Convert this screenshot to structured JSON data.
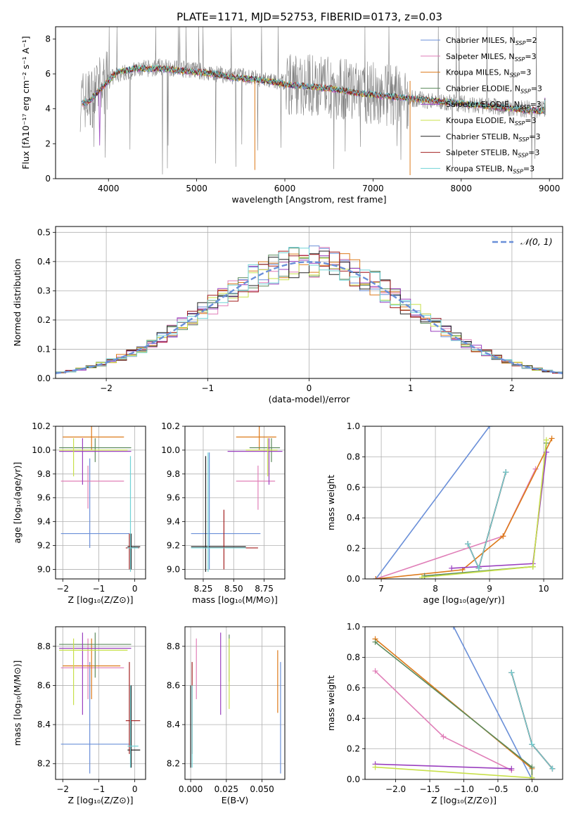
{
  "title": "PLATE=1171, MJD=52753, FIBERID=0173, z=0.03",
  "colors": {
    "blue": "#6a8fd8",
    "pink": "#e07fb8",
    "orange": "#dd7a1a",
    "green": "#5c8a5c",
    "purple": "#9a3fbf",
    "yellow": "#c8e04a",
    "black": "#222222",
    "red": "#a31f1f",
    "cyan": "#6fd3d6",
    "gray": "#808080",
    "grid": "#b0b0b0"
  },
  "chart_data": [
    {
      "id": "spectrum",
      "type": "line",
      "xlabel": "wavelength [Angstrom, rest frame]",
      "ylabel": "Flux [fλ10⁻¹⁷ erg cm⁻² s⁻¹ A⁻¹]",
      "xlim": [
        3400,
        9150
      ],
      "ylim": [
        0,
        8.7
      ],
      "xticks": [
        4000,
        5000,
        6000,
        7000,
        8000,
        9000
      ],
      "yticks": [
        0,
        2,
        4,
        6,
        8
      ],
      "grid": false,
      "legend": "top-right",
      "legend_entries": [
        {
          "label": "Chabrier MILES, N",
          "sub": "SSP",
          "suffix": "=2",
          "color": "blue"
        },
        {
          "label": "Salpeter MILES, N",
          "sub": "SSP",
          "suffix": "=3",
          "color": "pink"
        },
        {
          "label": "Kroupa MILES, N",
          "sub": "SSP",
          "suffix": "=3",
          "color": "orange"
        },
        {
          "label": "Chabrier ELODIE, N",
          "sub": "SSP",
          "suffix": "=3",
          "color": "green"
        },
        {
          "label": "Salpeter ELODIE, N",
          "sub": "SSP",
          "suffix": "=3",
          "color": "purple"
        },
        {
          "label": "Kroupa ELODIE, N",
          "sub": "SSP",
          "suffix": "=3",
          "color": "yellow"
        },
        {
          "label": "Chabrier STELIB, N",
          "sub": "SSP",
          "suffix": "=3",
          "color": "black"
        },
        {
          "label": "Salpeter STELIB, N",
          "sub": "SSP",
          "suffix": "=3",
          "color": "red"
        },
        {
          "label": "Kroupa STELIB, N",
          "sub": "SSP",
          "suffix": "=3",
          "color": "cyan"
        }
      ],
      "data_x": [
        3700,
        3800,
        3900,
        4000,
        4100,
        4200,
        4300,
        4400,
        4500,
        4600,
        4800,
        5000,
        5200,
        5400,
        5600,
        5800,
        6000,
        6200,
        6400,
        6600,
        6800,
        7000,
        7200,
        7400,
        7600,
        7800,
        8000,
        8200,
        8400,
        8600,
        8800,
        9000
      ],
      "data_y": [
        4.5,
        4.6,
        5.2,
        5.6,
        6.0,
        6.1,
        6.2,
        6.3,
        6.3,
        6.4,
        6.3,
        6.2,
        6.0,
        5.9,
        5.8,
        5.6,
        5.5,
        5.4,
        5.3,
        5.1,
        5.0,
        4.9,
        4.8,
        4.6,
        4.5,
        4.4,
        4.3,
        4.2,
        4.1,
        4.0,
        4.0,
        3.9
      ],
      "model_x": [
        3700,
        3800,
        3900,
        4000,
        4100,
        4200,
        4300,
        4400,
        4500,
        4600,
        4800,
        5000,
        5200,
        5400,
        5600,
        5800,
        6000,
        6200,
        6400,
        6600,
        6800,
        7000,
        7200,
        7400,
        7600,
        7800,
        8000,
        8200,
        8400,
        8600,
        8800,
        8950
      ],
      "model_y": [
        4.3,
        4.5,
        5.1,
        5.6,
        6.1,
        6.2,
        6.3,
        6.3,
        6.3,
        6.3,
        6.2,
        6.1,
        6.0,
        5.8,
        5.7,
        5.6,
        5.4,
        5.3,
        5.2,
        5.1,
        4.9,
        4.8,
        4.7,
        4.6,
        4.5,
        4.4,
        4.3,
        4.2,
        4.1,
        4.0,
        3.9,
        3.9
      ]
    },
    {
      "id": "residuals",
      "type": "line",
      "xlabel": "(data-model)/error",
      "ylabel": "Normed distribution",
      "xlim": [
        -2.5,
        2.5
      ],
      "ylim": [
        0,
        0.52
      ],
      "xticks": [
        -2,
        -1,
        0,
        1,
        2
      ],
      "yticks": [
        0.0,
        0.1,
        0.2,
        0.3,
        0.4,
        0.5
      ],
      "grid": true,
      "legend": "top-right",
      "legend_label": "𝒩(0, 1)",
      "series_colors": [
        "blue",
        "pink",
        "orange",
        "green",
        "purple",
        "yellow",
        "black",
        "red",
        "cyan"
      ]
    },
    {
      "id": "age_vs_Z",
      "type": "scatter",
      "xlabel": "Z [log₁₀(Z/Z⊙)]",
      "ylabel": "age  [log₁₀(age/yr)]",
      "xlim": [
        -2.2,
        0.3
      ],
      "ylim": [
        8.92,
        10.2
      ],
      "xticks": [
        -2,
        -1,
        0
      ],
      "yticks": [
        9.0,
        9.2,
        9.4,
        9.6,
        9.8,
        10.0,
        10.2
      ],
      "grid": true,
      "points": [
        {
          "c": "blue",
          "x": -1.25,
          "xe": [
            -2.05,
            -0.15
          ],
          "y": 9.3,
          "ye": [
            9.18,
            9.93
          ]
        },
        {
          "c": "pink",
          "x": -1.3,
          "xe": [
            -2.05,
            -0.3
          ],
          "y": 9.74,
          "ye": [
            9.51,
            9.87
          ]
        },
        {
          "c": "orange",
          "x": -1.2,
          "xe": [
            -2.0,
            -0.3
          ],
          "y": 10.11,
          "ye": [
            10.0,
            10.2
          ]
        },
        {
          "c": "green",
          "x": -1.1,
          "xe": [
            -2.1,
            -0.1
          ],
          "y": 10.02,
          "ye": [
            9.9,
            10.1
          ]
        },
        {
          "c": "purple",
          "x": -1.45,
          "xe": [
            -2.1,
            -0.1
          ],
          "y": 9.99,
          "ye": [
            9.71,
            10.1
          ]
        },
        {
          "c": "yellow",
          "x": -1.7,
          "xe": [
            -2.1,
            -0.2
          ],
          "y": 10.0,
          "ye": [
            9.78,
            10.1
          ]
        },
        {
          "c": "black",
          "x": -0.1,
          "xe": [
            -0.2,
            0.15
          ],
          "y": 9.19,
          "ye": [
            9.0,
            9.3
          ]
        },
        {
          "c": "red",
          "x": -0.15,
          "xe": [
            -0.25,
            0.12
          ],
          "y": 9.18,
          "ye": [
            9.0,
            9.3
          ]
        },
        {
          "c": "cyan",
          "x": -0.12,
          "xe": [
            -0.2,
            0.1
          ],
          "y": 9.18,
          "ye": [
            8.98,
            9.95
          ]
        }
      ]
    },
    {
      "id": "age_vs_mass",
      "type": "scatter",
      "xlabel": "mass [log₁₀(M/M⊙)]",
      "ylabel": "",
      "xlim": [
        8.1,
        8.92
      ],
      "ylim": [
        8.92,
        10.2
      ],
      "xticks": [
        8.25,
        8.5,
        8.75
      ],
      "yticks": [
        9.0,
        9.2,
        9.4,
        9.6,
        9.8,
        10.0,
        10.2
      ],
      "grid": true,
      "points": [
        {
          "c": "blue",
          "x": 8.3,
          "xe": [
            8.15,
            8.72
          ],
          "y": 9.3,
          "ye": [
            9.0,
            9.98
          ]
        },
        {
          "c": "pink",
          "x": 8.7,
          "xe": [
            8.52,
            8.84
          ],
          "y": 9.74,
          "ye": [
            9.5,
            9.87
          ]
        },
        {
          "c": "orange",
          "x": 8.71,
          "xe": [
            8.52,
            8.85
          ],
          "y": 10.11,
          "ye": [
            10.0,
            10.2
          ]
        },
        {
          "c": "green",
          "x": 8.81,
          "xe": [
            8.63,
            8.88
          ],
          "y": 10.02,
          "ye": [
            9.9,
            10.1
          ]
        },
        {
          "c": "purple",
          "x": 8.79,
          "xe": [
            8.45,
            8.9
          ],
          "y": 9.99,
          "ye": [
            9.71,
            10.1
          ]
        },
        {
          "c": "yellow",
          "x": 8.78,
          "xe": [
            8.6,
            8.86
          ],
          "y": 10.0,
          "ye": [
            9.78,
            10.1
          ]
        },
        {
          "c": "black",
          "x": 8.27,
          "xe": [
            8.15,
            8.6
          ],
          "y": 9.19,
          "ye": [
            8.98,
            9.95
          ]
        },
        {
          "c": "red",
          "x": 8.42,
          "xe": [
            8.25,
            8.7
          ],
          "y": 9.18,
          "ye": [
            9.0,
            9.5
          ]
        },
        {
          "c": "cyan",
          "x": 8.29,
          "xe": [
            8.15,
            8.6
          ],
          "y": 9.18,
          "ye": [
            8.98,
            9.98
          ]
        }
      ]
    },
    {
      "id": "massweight_vs_age",
      "type": "line",
      "xlabel": "age  [log₁₀(age/yr)]",
      "ylabel": "mass weight",
      "xlim": [
        6.7,
        10.35
      ],
      "ylim": [
        0,
        1.0
      ],
      "xticks": [
        7,
        8,
        9,
        10
      ],
      "yticks": [
        0.0,
        0.2,
        0.4,
        0.6,
        0.8,
        1.0
      ],
      "grid": true,
      "series": [
        {
          "c": "blue",
          "x": [
            6.9,
            9.0
          ],
          "y": [
            0.0,
            1.0
          ]
        },
        {
          "c": "pink",
          "x": [
            6.9,
            9.25,
            9.85
          ],
          "y": [
            0.0,
            0.28,
            0.72
          ]
        },
        {
          "c": "orange",
          "x": [
            6.9,
            8.5,
            9.25,
            10.15
          ],
          "y": [
            0.0,
            0.06,
            0.28,
            0.92
          ]
        },
        {
          "c": "green",
          "x": [
            7.8,
            9.8,
            10.05
          ],
          "y": [
            0.02,
            0.08,
            0.89
          ]
        },
        {
          "c": "purple",
          "x": [
            8.3,
            9.8,
            10.05
          ],
          "y": [
            0.07,
            0.1,
            0.83
          ]
        },
        {
          "c": "yellow",
          "x": [
            7.75,
            9.8,
            10.05
          ],
          "y": [
            0.01,
            0.08,
            0.91
          ]
        },
        {
          "c": "black",
          "x": [
            8.6,
            8.8,
            9.3
          ],
          "y": [
            0.23,
            0.07,
            0.7
          ]
        },
        {
          "c": "red",
          "x": [
            8.6,
            8.8,
            9.3
          ],
          "y": [
            0.23,
            0.07,
            0.7
          ]
        },
        {
          "c": "cyan",
          "x": [
            8.6,
            8.8,
            9.3
          ],
          "y": [
            0.23,
            0.07,
            0.7
          ]
        }
      ]
    },
    {
      "id": "mass_vs_Z",
      "type": "scatter",
      "xlabel": "Z [log₁₀(Z/Z⊙)]",
      "ylabel": "mass [log₁₀(M/M⊙)]",
      "xlim": [
        -2.2,
        0.3
      ],
      "ylim": [
        8.12,
        8.9
      ],
      "xticks": [
        -2,
        -1,
        0
      ],
      "yticks": [
        8.2,
        8.4,
        8.6,
        8.8
      ],
      "grid": true,
      "points": [
        {
          "c": "blue",
          "x": -1.25,
          "xe": [
            -2.05,
            -0.15
          ],
          "y": 8.3,
          "ye": [
            8.15,
            8.72
          ]
        },
        {
          "c": "pink",
          "x": -1.3,
          "xe": [
            -2.05,
            -0.3
          ],
          "y": 8.69,
          "ye": [
            8.53,
            8.84
          ]
        },
        {
          "c": "orange",
          "x": -1.2,
          "xe": [
            -2.0,
            -0.4
          ],
          "y": 8.7,
          "ye": [
            8.53,
            8.84
          ]
        },
        {
          "c": "green",
          "x": -1.1,
          "xe": [
            -2.1,
            -0.1
          ],
          "y": 8.81,
          "ye": [
            8.64,
            8.87
          ]
        },
        {
          "c": "purple",
          "x": -1.45,
          "xe": [
            -2.1,
            -0.1
          ],
          "y": 8.79,
          "ye": [
            8.45,
            8.87
          ]
        },
        {
          "c": "yellow",
          "x": -1.7,
          "xe": [
            -2.1,
            -0.2
          ],
          "y": 8.78,
          "ye": [
            8.5,
            8.84
          ]
        },
        {
          "c": "black",
          "x": -0.1,
          "xe": [
            -0.2,
            0.15
          ],
          "y": 8.27,
          "ye": [
            8.18,
            8.6
          ]
        },
        {
          "c": "red",
          "x": -0.15,
          "xe": [
            -0.25,
            0.15
          ],
          "y": 8.42,
          "ye": [
            8.25,
            8.72
          ]
        },
        {
          "c": "cyan",
          "x": -0.12,
          "xe": [
            -0.2,
            0.1
          ],
          "y": 8.29,
          "ye": [
            8.18,
            8.6
          ]
        }
      ]
    },
    {
      "id": "mass_vs_ebv",
      "type": "scatter",
      "xlabel": "E(B-V)",
      "ylabel": "",
      "xlim": [
        -0.004,
        0.066
      ],
      "ylim": [
        8.12,
        8.9
      ],
      "xticks": [
        0.0,
        0.025,
        0.05
      ],
      "yticks": [
        8.2,
        8.4,
        8.6,
        8.8
      ],
      "grid": true,
      "points": [
        {
          "c": "blue",
          "x": 0.063,
          "y": 8.3,
          "ye": [
            8.15,
            8.72
          ]
        },
        {
          "c": "pink",
          "x": 0.004,
          "y": 8.69,
          "ye": [
            8.53,
            8.84
          ]
        },
        {
          "c": "orange",
          "x": 0.061,
          "y": 8.7,
          "ye": [
            8.46,
            8.78
          ]
        },
        {
          "c": "green",
          "x": 0.027,
          "y": 8.81,
          "ye": [
            8.62,
            8.86
          ]
        },
        {
          "c": "purple",
          "x": 0.021,
          "y": 8.79,
          "ye": [
            8.45,
            8.87
          ]
        },
        {
          "c": "yellow",
          "x": 0.027,
          "y": 8.78,
          "ye": [
            8.48,
            8.84
          ]
        },
        {
          "c": "black",
          "x": 0.0,
          "y": 8.27,
          "ye": [
            8.18,
            8.6
          ]
        },
        {
          "c": "red",
          "x": 0.001,
          "y": 8.42,
          "ye": [
            8.25,
            8.72
          ]
        },
        {
          "c": "cyan",
          "x": 0.001,
          "y": 8.29,
          "ye": [
            8.18,
            8.6
          ]
        }
      ]
    },
    {
      "id": "massweight_vs_Z",
      "type": "line",
      "xlabel": "Z [log₁₀(Z/Z⊙)]",
      "ylabel": "mass weight",
      "xlim": [
        -2.45,
        0.45
      ],
      "ylim": [
        0,
        1.0
      ],
      "xticks": [
        -2.0,
        -1.5,
        -1.0,
        -0.5,
        0.0
      ],
      "yticks": [
        0.0,
        0.2,
        0.4,
        0.6,
        0.8,
        1.0
      ],
      "grid": true,
      "series": [
        {
          "c": "blue",
          "x": [
            -1.15,
            0.0
          ],
          "y": [
            1.0,
            0.0
          ]
        },
        {
          "c": "pink",
          "x": [
            -2.3,
            -1.3,
            -0.3
          ],
          "y": [
            0.71,
            0.28,
            0.06
          ]
        },
        {
          "c": "orange",
          "x": [
            -2.3,
            0.0,
            0.0
          ],
          "y": [
            0.92,
            0.07,
            0.0
          ]
        },
        {
          "c": "green",
          "x": [
            -2.3,
            0.0,
            0.0
          ],
          "y": [
            0.9,
            0.08,
            0.01
          ]
        },
        {
          "c": "purple",
          "x": [
            -2.3,
            -0.3
          ],
          "y": [
            0.1,
            0.07
          ]
        },
        {
          "c": "yellow",
          "x": [
            -2.3,
            0.0
          ],
          "y": [
            0.08,
            0.01
          ]
        },
        {
          "c": "black",
          "x": [
            -0.3,
            0.0,
            0.3
          ],
          "y": [
            0.7,
            0.23,
            0.07
          ]
        },
        {
          "c": "red",
          "x": [
            -0.3,
            0.0,
            0.3
          ],
          "y": [
            0.7,
            0.23,
            0.07
          ]
        },
        {
          "c": "cyan",
          "x": [
            -0.3,
            0.0,
            0.3
          ],
          "y": [
            0.7,
            0.23,
            0.07
          ]
        }
      ]
    }
  ]
}
